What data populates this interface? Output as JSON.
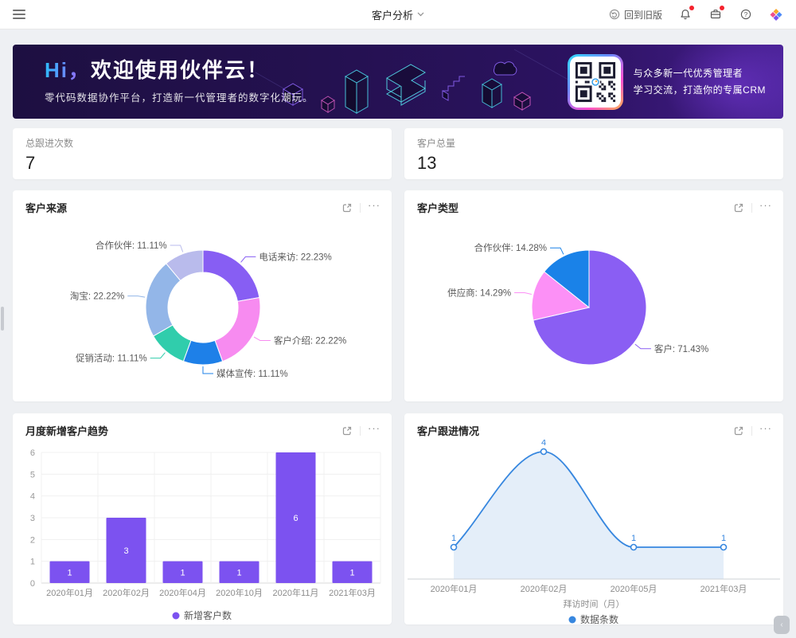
{
  "navbar": {
    "title": "客户分析",
    "back_label": "回到旧版"
  },
  "banner": {
    "title_hi": "Hi，",
    "title_rest": "欢迎使用伙伴云！",
    "subtitle": "零代码数据协作平台，打造新一代管理者的数字化潮玩。",
    "qr_line1": "与众多新一代优秀管理者",
    "qr_line2": "学习交流，打造你的专属CRM"
  },
  "stats": [
    {
      "label": "总跟进次数",
      "value": "7"
    },
    {
      "label": "客户总量",
      "value": "13"
    }
  ],
  "chart_data": [
    {
      "type": "pie",
      "variant": "donut",
      "title": "客户来源",
      "legend_position": "none",
      "slices": [
        {
          "name": "电话来访",
          "pct": 22.23,
          "label": "电话来访: 22.23%",
          "color": "#875EF3"
        },
        {
          "name": "客户介绍",
          "pct": 22.22,
          "label": "客户介绍: 22.22%",
          "color": "#F78BF0"
        },
        {
          "name": "媒体宣传",
          "pct": 11.11,
          "label": "媒体宣传: 11.11%",
          "color": "#1E80E8"
        },
        {
          "name": "促销活动",
          "pct": 11.11,
          "label": "促销活动: 11.11%",
          "color": "#30CDAC"
        },
        {
          "name": "淘宝",
          "pct": 22.22,
          "label": "淘宝: 22.22%",
          "color": "#93B6E8"
        },
        {
          "name": "合作伙伴",
          "pct": 11.11,
          "label": "合作伙伴: 11.11%",
          "color": "#B9BBEC"
        }
      ]
    },
    {
      "type": "pie",
      "title": "客户类型",
      "legend_position": "none",
      "slices": [
        {
          "name": "客户",
          "pct": 71.43,
          "label": "客户: 71.43%",
          "color": "#8A5EF3"
        },
        {
          "name": "供应商",
          "pct": 14.29,
          "label": "供应商: 14.29%",
          "color": "#FC90F6"
        },
        {
          "name": "合作伙伴",
          "pct": 14.28,
          "label": "合作伙伴: 14.28%",
          "color": "#1A82E8"
        }
      ]
    },
    {
      "type": "bar",
      "title": "月度新增客户趋势",
      "categories": [
        "2020年01月",
        "2020年02月",
        "2020年04月",
        "2020年10月",
        "2020年11月",
        "2021年03月"
      ],
      "values": [
        1,
        3,
        1,
        1,
        6,
        1
      ],
      "ylim": [
        0,
        6
      ],
      "yticks": [
        0,
        1,
        2,
        3,
        4,
        5,
        6
      ],
      "color": "#7C52F0",
      "grid": true,
      "legend": "新增客户数",
      "legend_position": "bottom",
      "xlabel": "",
      "ylabel": ""
    },
    {
      "type": "line",
      "title": "客户跟进情况",
      "smooth": true,
      "area": true,
      "categories": [
        "2020年01月",
        "2020年02月",
        "2020年05月",
        "2021年03月"
      ],
      "values": [
        1,
        4,
        1,
        1
      ],
      "color": "#3787DF",
      "area_color": "#E4EEF9",
      "xlabel": "拜访时间（月）",
      "ylabel": "",
      "legend": "数据条数",
      "legend_position": "bottom"
    }
  ],
  "ui": {
    "more": "···",
    "collapse": "‹"
  }
}
